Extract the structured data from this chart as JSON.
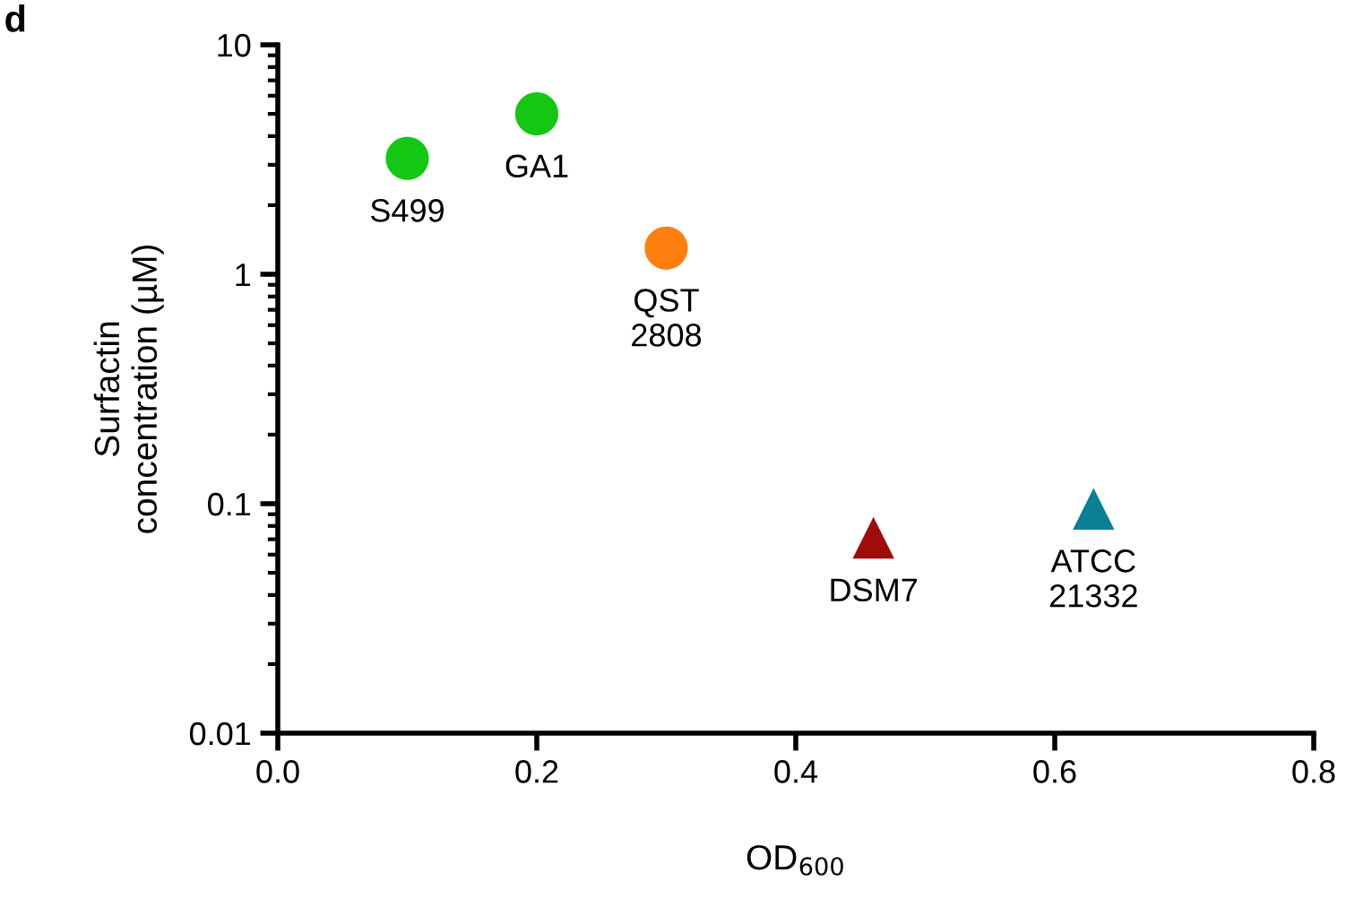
{
  "chart_data": {
    "type": "scatter",
    "title": "d",
    "xlabel": "OD$_{600}$",
    "ylabel": "Surfactin\nconcentration (µM)",
    "log": "y",
    "xlim": [
      0,
      0.8
    ],
    "xticks": [
      {
        "value": 0,
        "label": "0.0"
      },
      {
        "value": 0.2,
        "label": "0.2"
      },
      {
        "value": 0.4,
        "label": "0.4"
      },
      {
        "value": 0.6,
        "label": "0.6"
      },
      {
        "value": 0.8,
        "label": "0.8"
      }
    ],
    "ylim": [
      0.01,
      10
    ],
    "yticks": [
      {
        "value": 0.01,
        "label": "0.01"
      },
      {
        "value": 0.1,
        "label": "0.1"
      },
      {
        "value": 1,
        "label": "1"
      },
      {
        "value": 10,
        "label": "10"
      }
    ],
    "grid": false,
    "legend": false,
    "series": [
      {
        "marker": "circle",
        "x": [
          0.1,
          0.2,
          0.3
        ],
        "values": [
          3.2,
          5.0,
          1.3
        ],
        "colors": [
          "#13c713",
          "#13c713",
          "#ff7f0e"
        ]
      },
      {
        "marker": "triangle",
        "x": [
          0.46,
          0.63
        ],
        "values": [
          0.071,
          0.095
        ],
        "colors": [
          "#a00c0c",
          "#0a7f96"
        ]
      }
    ],
    "annotations": [
      {
        "text": "S499",
        "x": 0.1,
        "y": 3.2
      },
      {
        "text": "GA1",
        "x": 0.2,
        "y": 5.0
      },
      {
        "text": "QST\n2808",
        "x": 0.3,
        "y": 1.3
      },
      {
        "text": "DSM7",
        "x": 0.46,
        "y": 0.071
      },
      {
        "text": "ATCC\n21332",
        "x": 0.63,
        "y": 0.095
      }
    ]
  }
}
